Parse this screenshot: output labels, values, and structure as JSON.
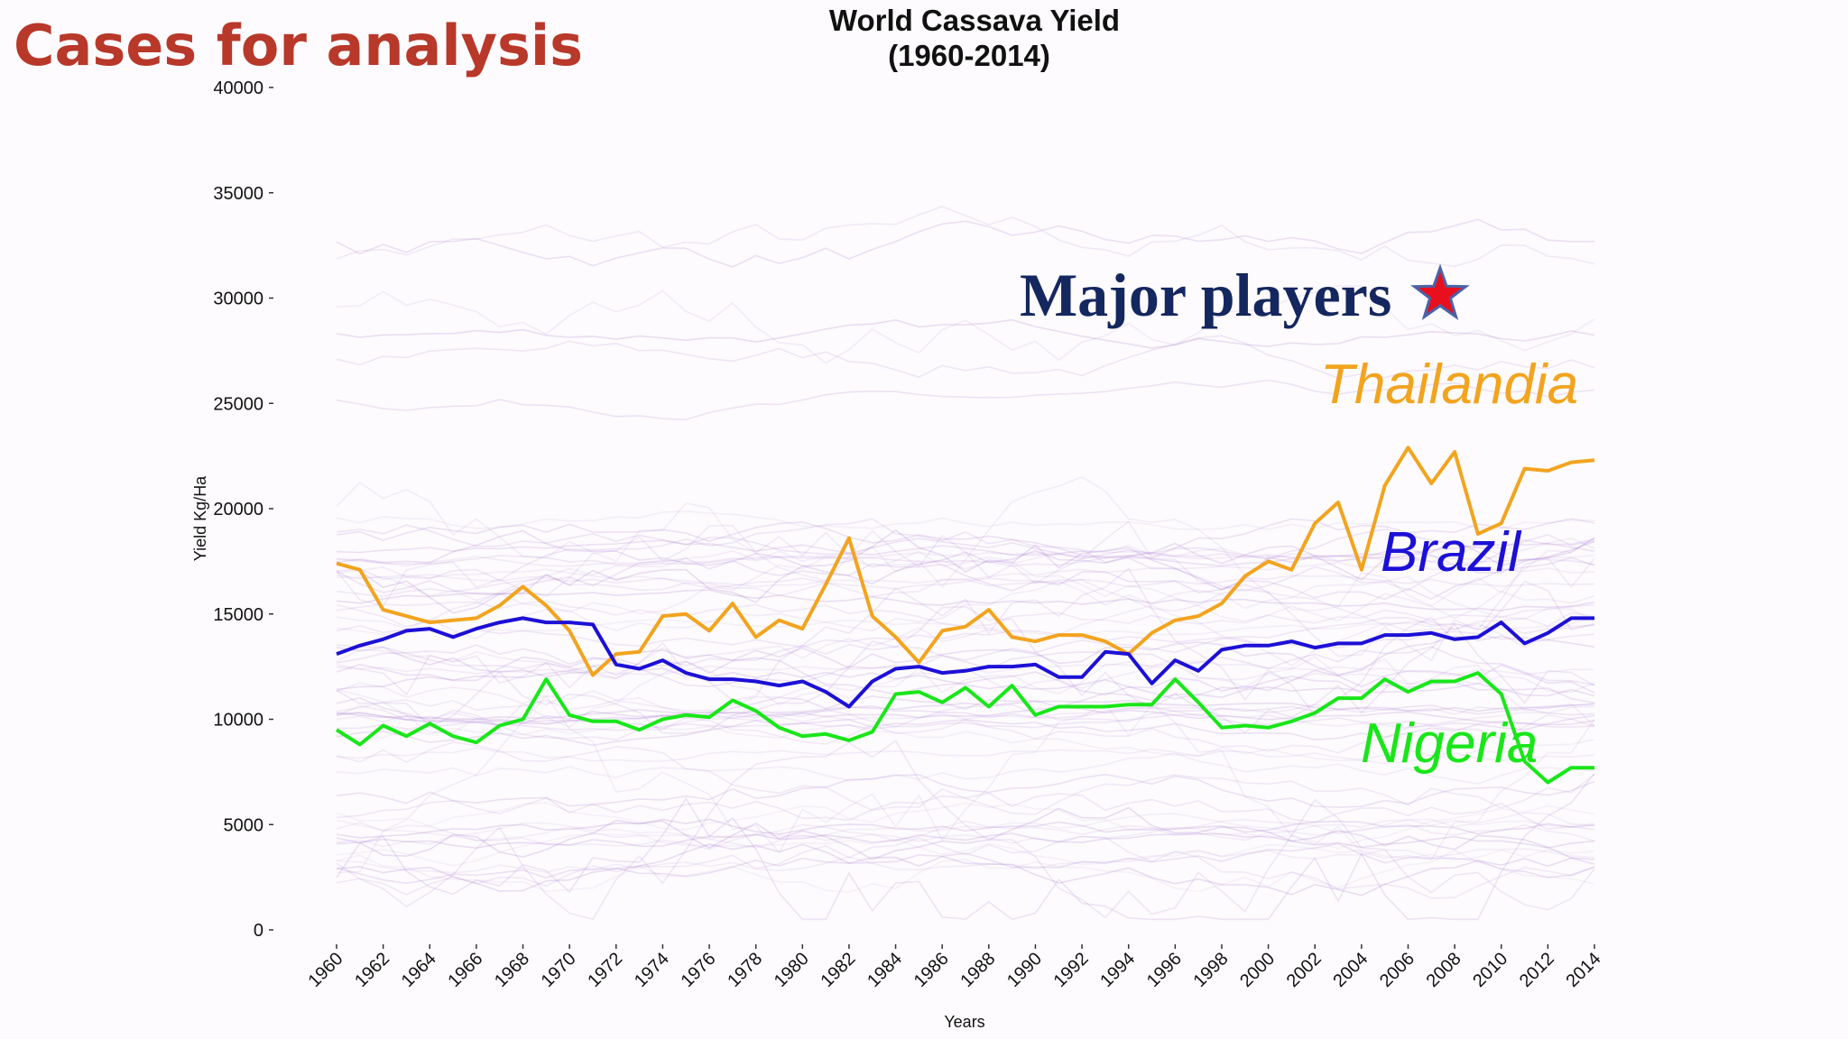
{
  "slide": {
    "title": "Cases for analysis"
  },
  "annotation": {
    "text": "Major players",
    "star_color": "#e8101e",
    "star_outline": "#4a63a8",
    "text_color": "#14275e"
  },
  "colors": {
    "background": "#fdfbfd",
    "slide_title": "#b8382a",
    "background_lines": "#a06ccd"
  },
  "chart_data": {
    "type": "line",
    "title": "World Cassava Yield",
    "subtitle": "(1960-2014)",
    "xlabel": "Years",
    "ylabel": "Yield Kg/Ha",
    "ylim": [
      0,
      40000
    ],
    "xlim": [
      1960,
      2014
    ],
    "yticks": [
      "0",
      "5000",
      "10000",
      "15000",
      "20000",
      "25000",
      "30000",
      "35000",
      "40000"
    ],
    "xticks": [
      "1960",
      "1962",
      "1964",
      "1966",
      "1968",
      "1970",
      "1972",
      "1974",
      "1976",
      "1978",
      "1980",
      "1982",
      "1984",
      "1986",
      "1988",
      "1990",
      "1992",
      "1994",
      "1996",
      "1998",
      "2000",
      "2002",
      "2004",
      "2006",
      "2008",
      "2010",
      "2012",
      "2014"
    ],
    "grid": false,
    "legend": "none",
    "x": [
      1960,
      1961,
      1962,
      1963,
      1964,
      1965,
      1966,
      1967,
      1968,
      1969,
      1970,
      1971,
      1972,
      1973,
      1974,
      1975,
      1976,
      1977,
      1978,
      1979,
      1980,
      1981,
      1982,
      1983,
      1984,
      1985,
      1986,
      1987,
      1988,
      1989,
      1990,
      1991,
      1992,
      1993,
      1994,
      1995,
      1996,
      1997,
      1998,
      1999,
      2000,
      2001,
      2002,
      2003,
      2004,
      2005,
      2006,
      2007,
      2008,
      2009,
      2010,
      2011,
      2012,
      2013,
      2014
    ],
    "series": [
      {
        "name": "Thailandia",
        "color": "#f2a41f",
        "values": [
          17400,
          17100,
          15200,
          14900,
          14600,
          14700,
          14800,
          15400,
          16300,
          15400,
          14200,
          12100,
          13100,
          13200,
          14900,
          15000,
          14200,
          15500,
          13900,
          14700,
          14300,
          16400,
          18600,
          14900,
          13900,
          12700,
          14200,
          14400,
          15200,
          13900,
          13700,
          14000,
          14000,
          13700,
          13100,
          14100,
          14700,
          14900,
          15500,
          16800,
          17500,
          17100,
          19300,
          20300,
          17100,
          21100,
          22900,
          21200,
          22700,
          18800,
          19300,
          21900,
          21800,
          22200,
          22300
        ]
      },
      {
        "name": "Brazil",
        "color": "#1c10d6",
        "values": [
          13100,
          13500,
          13800,
          14200,
          14300,
          13900,
          14300,
          14600,
          14800,
          14600,
          14600,
          14500,
          12600,
          12400,
          12800,
          12200,
          11900,
          11900,
          11800,
          11600,
          11800,
          11300,
          10600,
          11800,
          12400,
          12500,
          12200,
          12300,
          12500,
          12500,
          12600,
          12000,
          12000,
          13200,
          13100,
          11700,
          12800,
          12300,
          13300,
          13500,
          13500,
          13700,
          13400,
          13600,
          13600,
          14000,
          14000,
          14100,
          13800,
          13900,
          14600,
          13600,
          14100,
          14800,
          14800
        ]
      },
      {
        "name": "Nigeria",
        "color": "#19e619",
        "values": [
          9500,
          8800,
          9700,
          9200,
          9800,
          9200,
          8900,
          9700,
          10000,
          11900,
          10200,
          9900,
          9900,
          9500,
          10000,
          10200,
          10100,
          10900,
          10400,
          9600,
          9200,
          9300,
          9000,
          9400,
          11200,
          11300,
          10800,
          11500,
          10600,
          11600,
          10200,
          10600,
          10600,
          10600,
          10700,
          10700,
          11900,
          10800,
          9600,
          9700,
          9600,
          9900,
          10300,
          11000,
          11000,
          11900,
          11300,
          11800,
          11800,
          12200,
          11200,
          8000,
          7000,
          7700,
          7700
        ]
      }
    ],
    "background_series_note": ""
  }
}
